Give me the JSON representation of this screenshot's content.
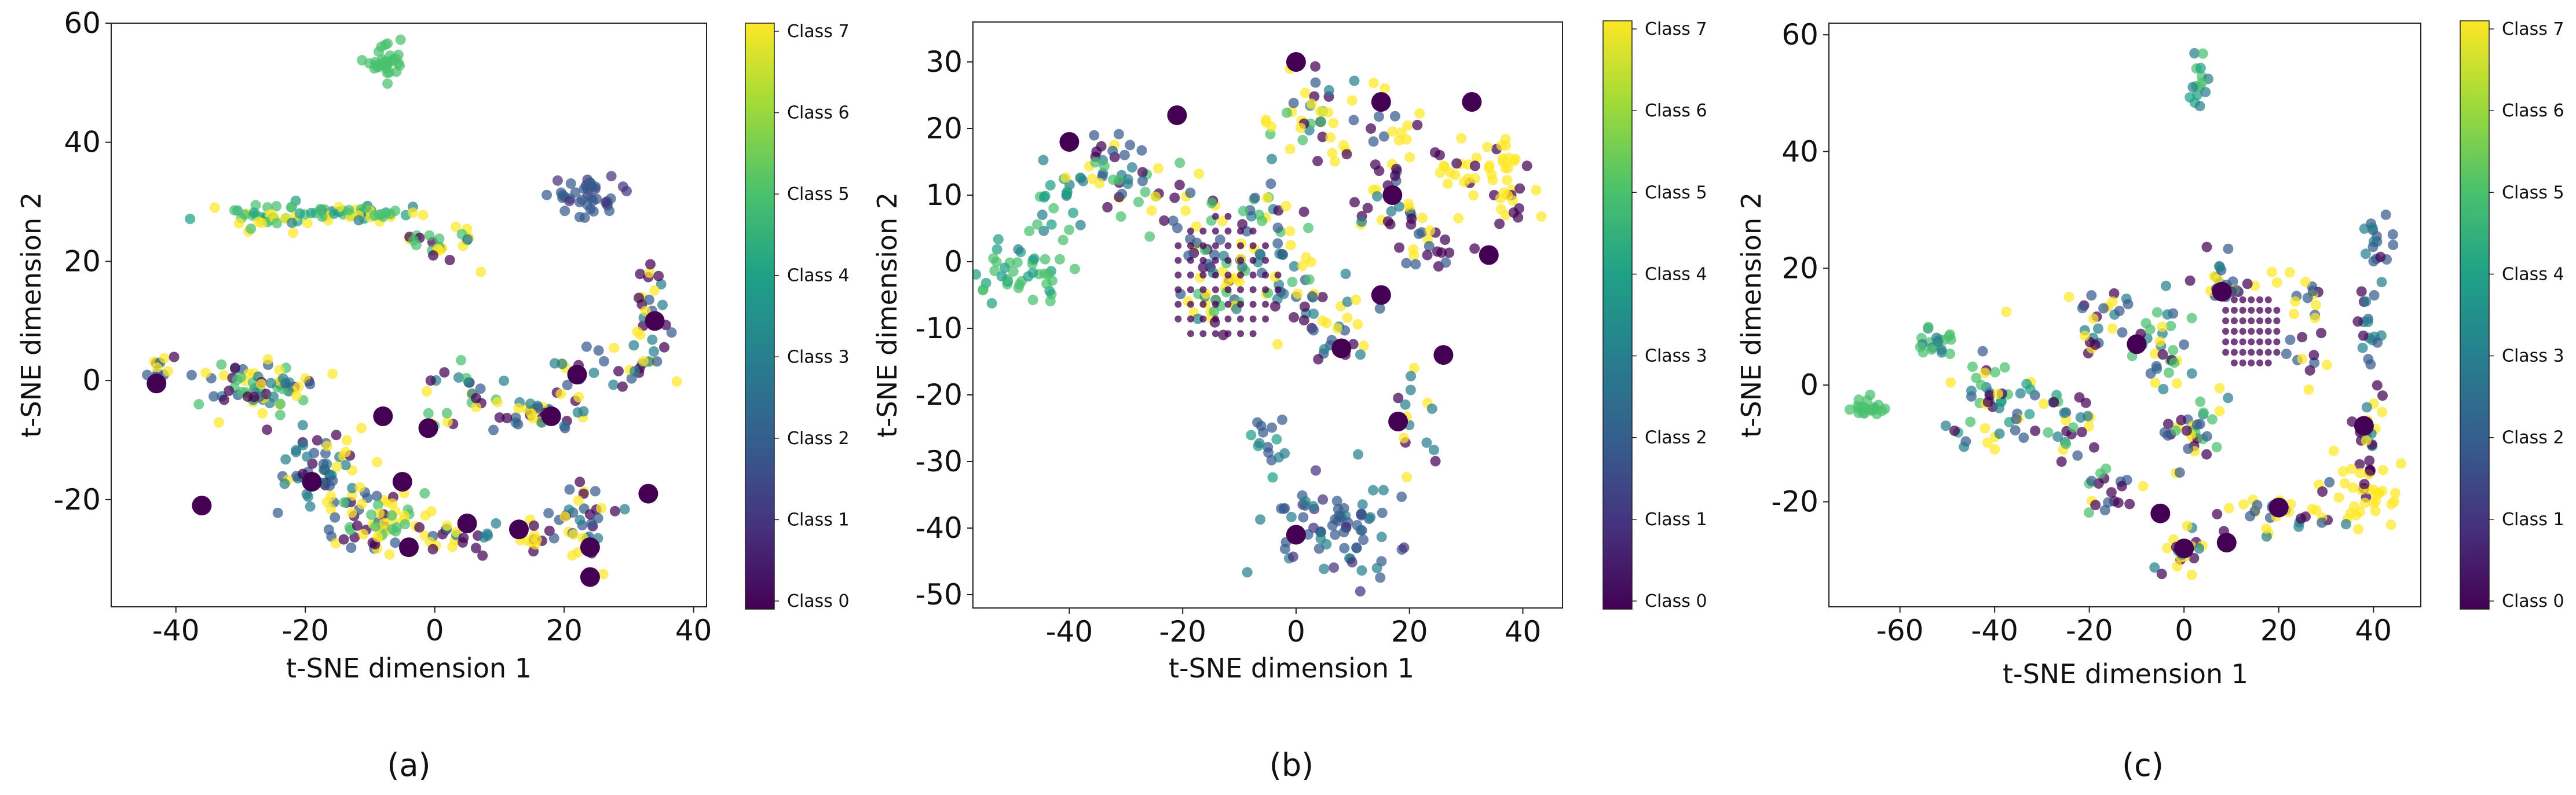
{
  "colorbar_classes": [
    "Class 0",
    "Class 1",
    "Class 2",
    "Class 3",
    "Class 4",
    "Class 5",
    "Class 6",
    "Class 7"
  ],
  "chart_data": [
    {
      "type": "scatter",
      "id": "a",
      "caption": "(a)",
      "xlabel": "t-SNE dimension 1",
      "ylabel": "t-SNE dimension 2",
      "xlim": [
        -50,
        42
      ],
      "ylim": [
        -38,
        60
      ],
      "xticks": [
        -40,
        -20,
        0,
        20,
        40
      ],
      "yticks": [
        -20,
        0,
        20,
        40,
        60
      ],
      "xtick_labels": [
        "-40",
        "-20",
        "0",
        "20",
        "40"
      ],
      "ytick_labels": [
        "-20",
        "0",
        "20",
        "40",
        "60"
      ],
      "clusters": [
        {
          "cx": -8,
          "cy": 53,
          "sx": 1.8,
          "sy": 1.5,
          "n": 30,
          "classes": [
            5
          ]
        },
        {
          "cx": -26,
          "cy": 27.5,
          "sx": 4,
          "sy": 1.2,
          "n": 40,
          "classes": [
            5,
            5,
            4,
            7
          ]
        },
        {
          "cx": -12,
          "cy": 28,
          "sx": 5,
          "sy": 0.8,
          "n": 45,
          "classes": [
            5,
            7,
            4,
            5,
            3
          ]
        },
        {
          "cx": 1,
          "cy": 23,
          "sx": 2.5,
          "sy": 2,
          "n": 25,
          "classes": [
            5,
            7,
            3,
            0
          ]
        },
        {
          "cx": 24,
          "cy": 31,
          "sx": 3,
          "sy": 2,
          "n": 40,
          "classes": [
            2,
            2,
            1
          ]
        },
        {
          "cx": 33,
          "cy": 13,
          "sx": 1.5,
          "sy": 3.5,
          "n": 22,
          "classes": [
            2,
            0,
            7,
            3
          ]
        },
        {
          "cx": 31,
          "cy": 3,
          "sx": 3,
          "sy": 2,
          "n": 20,
          "classes": [
            7,
            3,
            0,
            2
          ]
        },
        {
          "cx": -43,
          "cy": 1.5,
          "sx": 1.5,
          "sy": 1.2,
          "n": 12,
          "classes": [
            0,
            7,
            2
          ]
        },
        {
          "cx": -26,
          "cy": -1,
          "sx": 4.5,
          "sy": 2.5,
          "n": 70,
          "classes": [
            7,
            7,
            0,
            2,
            3,
            5
          ]
        },
        {
          "cx": -17,
          "cy": -15,
          "sx": 3.5,
          "sy": 4,
          "n": 60,
          "classes": [
            7,
            7,
            0,
            3,
            2
          ]
        },
        {
          "cx": -8,
          "cy": -24,
          "sx": 4.5,
          "sy": 3,
          "n": 70,
          "classes": [
            7,
            7,
            0,
            2,
            5
          ]
        },
        {
          "cx": 3,
          "cy": -3,
          "sx": 3,
          "sy": 2.5,
          "n": 25,
          "classes": [
            0,
            7,
            2,
            5,
            3
          ]
        },
        {
          "cx": 5,
          "cy": -26,
          "sx": 2,
          "sy": 1.5,
          "n": 15,
          "classes": [
            7,
            0,
            3
          ]
        },
        {
          "cx": 15,
          "cy": -6,
          "sx": 3,
          "sy": 1.2,
          "n": 30,
          "classes": [
            7,
            0,
            2,
            3
          ]
        },
        {
          "cx": 21,
          "cy": -2,
          "sx": 1.5,
          "sy": 4,
          "n": 15,
          "classes": [
            3,
            7,
            0,
            2
          ]
        },
        {
          "cx": 15,
          "cy": -27,
          "sx": 2,
          "sy": 1.5,
          "n": 12,
          "classes": [
            7,
            0
          ]
        },
        {
          "cx": 24,
          "cy": -24,
          "sx": 2.5,
          "sy": 4,
          "n": 35,
          "classes": [
            7,
            0,
            3,
            2
          ]
        }
      ],
      "big_points": [
        [
          -43,
          -0.5
        ],
        [
          -36,
          -21
        ],
        [
          -19,
          -17
        ],
        [
          -8,
          -6
        ],
        [
          -1,
          -8
        ],
        [
          -5,
          -17
        ],
        [
          -4,
          -28
        ],
        [
          5,
          -24
        ],
        [
          13,
          -25
        ],
        [
          18,
          -6
        ],
        [
          24,
          -28
        ],
        [
          24,
          -33
        ],
        [
          33,
          -19
        ],
        [
          34,
          10
        ],
        [
          22,
          1
        ]
      ]
    },
    {
      "type": "scatter",
      "id": "b",
      "caption": "(b)",
      "xlabel": "t-SNE dimension 1",
      "ylabel": "t-SNE dimension 2",
      "xlim": [
        -57,
        47
      ],
      "ylim": [
        -52,
        36
      ],
      "xticks": [
        -40,
        -20,
        0,
        20,
        40
      ],
      "yticks": [
        -50,
        -40,
        -30,
        -20,
        -10,
        0,
        10,
        20,
        30
      ],
      "xtick_labels": [
        "-40",
        "-20",
        "0",
        "20",
        "40"
      ],
      "ytick_labels": [
        "-50",
        "-40",
        "-30",
        "-20",
        "-10",
        "0",
        "10",
        "20",
        "30"
      ],
      "clusters": [
        {
          "cx": -49,
          "cy": -2,
          "sx": 4,
          "sy": 2,
          "n": 40,
          "classes": [
            5,
            4,
            5
          ]
        },
        {
          "cx": -42,
          "cy": 8,
          "sx": 3,
          "sy": 4,
          "n": 25,
          "classes": [
            5,
            4,
            3
          ]
        },
        {
          "cx": -32,
          "cy": 14,
          "sx": 4,
          "sy": 4,
          "n": 40,
          "classes": [
            5,
            7,
            3,
            0,
            2
          ]
        },
        {
          "cx": -20,
          "cy": 8,
          "sx": 4,
          "sy": 4,
          "n": 20,
          "classes": [
            7,
            5,
            0,
            2
          ]
        },
        {
          "cx": -13,
          "cy": -4,
          "sx": 4,
          "sy": 4,
          "n": 55,
          "classes": [
            7,
            7,
            3,
            5,
            0,
            2
          ]
        },
        {
          "cx": -5,
          "cy": 8,
          "sx": 3,
          "sy": 3,
          "n": 20,
          "classes": [
            7,
            2,
            3,
            0,
            5
          ]
        },
        {
          "cx": 3,
          "cy": 22,
          "sx": 4,
          "sy": 4,
          "n": 40,
          "classes": [
            7,
            7,
            3,
            0,
            2,
            5
          ]
        },
        {
          "cx": 17,
          "cy": 20,
          "sx": 3,
          "sy": 4,
          "n": 20,
          "classes": [
            7,
            0,
            2
          ]
        },
        {
          "cx": 0,
          "cy": -3,
          "sx": 3,
          "sy": 4,
          "n": 30,
          "classes": [
            7,
            3,
            0,
            2,
            5
          ]
        },
        {
          "cx": 7,
          "cy": -10,
          "sx": 3,
          "sy": 3,
          "n": 25,
          "classes": [
            7,
            0,
            2,
            3
          ]
        },
        {
          "cx": 17,
          "cy": 8,
          "sx": 3,
          "sy": 3,
          "n": 25,
          "classes": [
            7,
            0,
            3
          ]
        },
        {
          "cx": 24,
          "cy": 2,
          "sx": 3,
          "sy": 3,
          "n": 20,
          "classes": [
            7,
            0,
            2
          ]
        },
        {
          "cx": 33,
          "cy": 14,
          "sx": 5,
          "sy": 2,
          "n": 40,
          "classes": [
            7,
            7,
            7,
            0
          ]
        },
        {
          "cx": 39,
          "cy": 8,
          "sx": 2.5,
          "sy": 3,
          "n": 15,
          "classes": [
            7,
            7,
            0
          ]
        },
        {
          "cx": 20,
          "cy": -22,
          "sx": 2.5,
          "sy": 4,
          "n": 15,
          "classes": [
            7,
            0,
            3
          ]
        },
        {
          "cx": -5,
          "cy": -27,
          "sx": 2,
          "sy": 2,
          "n": 15,
          "classes": [
            3,
            4,
            2
          ]
        },
        {
          "cx": 7,
          "cy": -40,
          "sx": 6,
          "sy": 3.5,
          "n": 75,
          "classes": [
            2,
            2,
            1,
            3
          ]
        }
      ],
      "grid_clusters": [
        {
          "cx": -13,
          "cy": -3,
          "r": 10,
          "step": 2.2,
          "class": 0
        }
      ],
      "big_points": [
        [
          -40,
          18
        ],
        [
          -21,
          22
        ],
        [
          0,
          30
        ],
        [
          15,
          24
        ],
        [
          31,
          24
        ],
        [
          17,
          10
        ],
        [
          34,
          1
        ],
        [
          15,
          -5
        ],
        [
          8,
          -13
        ],
        [
          26,
          -14
        ],
        [
          18,
          -24
        ],
        [
          0,
          -41
        ]
      ]
    },
    {
      "type": "scatter",
      "id": "c",
      "caption": "(c)",
      "xlabel": "t-SNE dimension 1",
      "ylabel": "t-SNE dimension 2",
      "xlim": [
        -75,
        50
      ],
      "ylim": [
        -38,
        62
      ],
      "xticks": [
        -60,
        -40,
        -20,
        0,
        20,
        40
      ],
      "yticks": [
        -20,
        0,
        20,
        40,
        60
      ],
      "xtick_labels": [
        "-60",
        "-40",
        "-20",
        "0",
        "20",
        "40"
      ],
      "ytick_labels": [
        "-20",
        "0",
        "20",
        "40",
        "60"
      ],
      "clusters": [
        {
          "cx": 3,
          "cy": 51,
          "sx": 1,
          "sy": 2,
          "n": 15,
          "classes": [
            3,
            2,
            5,
            4
          ]
        },
        {
          "cx": -67,
          "cy": -4,
          "sx": 2,
          "sy": 1,
          "n": 20,
          "classes": [
            5
          ]
        },
        {
          "cx": -52,
          "cy": 7,
          "sx": 2,
          "sy": 2,
          "n": 20,
          "classes": [
            5,
            5,
            3
          ]
        },
        {
          "cx": -40,
          "cy": -2,
          "sx": 5,
          "sy": 4,
          "n": 50,
          "classes": [
            5,
            4,
            7,
            3,
            2,
            0
          ]
        },
        {
          "cx": -24,
          "cy": -6,
          "sx": 4,
          "sy": 3,
          "n": 25,
          "classes": [
            7,
            5,
            3,
            0,
            2
          ]
        },
        {
          "cx": -17,
          "cy": -18,
          "sx": 3,
          "sy": 3,
          "n": 20,
          "classes": [
            7,
            0,
            2,
            5
          ]
        },
        {
          "cx": -18,
          "cy": 12,
          "sx": 3,
          "sy": 4,
          "n": 25,
          "classes": [
            0,
            7,
            2,
            3
          ]
        },
        {
          "cx": -5,
          "cy": 6,
          "sx": 3,
          "sy": 4,
          "n": 30,
          "classes": [
            7,
            3,
            0,
            2,
            5
          ]
        },
        {
          "cx": 1,
          "cy": -8,
          "sx": 3,
          "sy": 4,
          "n": 35,
          "classes": [
            7,
            0,
            3,
            2,
            5
          ]
        },
        {
          "cx": 0,
          "cy": -29,
          "sx": 2,
          "sy": 2.5,
          "n": 20,
          "classes": [
            7,
            0,
            3
          ]
        },
        {
          "cx": 8,
          "cy": 18,
          "sx": 4,
          "sy": 2,
          "n": 25,
          "classes": [
            7,
            0,
            2,
            3
          ]
        },
        {
          "cx": 25,
          "cy": 11,
          "sx": 3,
          "sy": 5,
          "n": 25,
          "classes": [
            0,
            7,
            2
          ]
        },
        {
          "cx": 40,
          "cy": 25,
          "sx": 2,
          "sy": 2,
          "n": 15,
          "classes": [
            2,
            2,
            3
          ]
        },
        {
          "cx": 39,
          "cy": 12,
          "sx": 1.5,
          "sy": 5,
          "n": 20,
          "classes": [
            2,
            3,
            0
          ]
        },
        {
          "cx": 39,
          "cy": -6,
          "sx": 2,
          "sy": 3,
          "n": 15,
          "classes": [
            7,
            0,
            3
          ]
        },
        {
          "cx": 40,
          "cy": -18,
          "sx": 4,
          "sy": 3,
          "n": 40,
          "classes": [
            7,
            7,
            7,
            0
          ]
        },
        {
          "cx": 22,
          "cy": -22,
          "sx": 7,
          "sy": 2,
          "n": 35,
          "classes": [
            7,
            7,
            0,
            3,
            2
          ]
        }
      ],
      "grid_clusters": [
        {
          "cx": 14,
          "cy": 9,
          "r": 7,
          "step": 1.8,
          "class": 0
        }
      ],
      "big_points": [
        [
          -5,
          -22
        ],
        [
          0,
          -28
        ],
        [
          9,
          -27
        ],
        [
          20,
          -21
        ],
        [
          38,
          -7
        ],
        [
          -10,
          7
        ],
        [
          8,
          16
        ]
      ]
    }
  ]
}
